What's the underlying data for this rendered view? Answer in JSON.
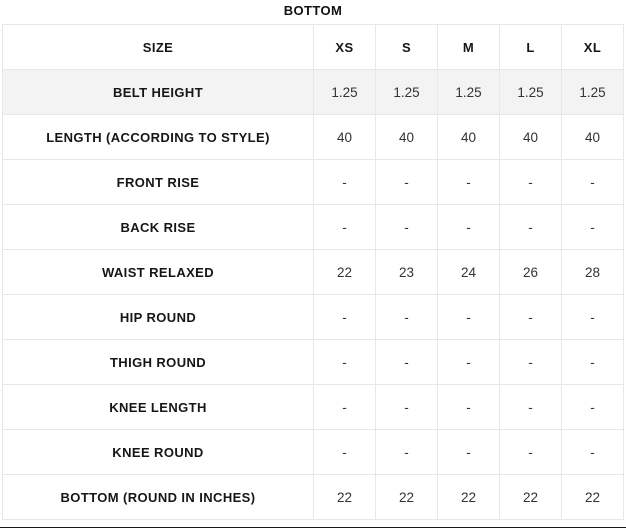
{
  "title": "BOTTOM",
  "table": {
    "header": {
      "label": "SIZE",
      "sizes": [
        "XS",
        "S",
        "M",
        "L",
        "XL"
      ]
    },
    "rows": [
      {
        "label": "BELT HEIGHT",
        "values": [
          "1.25",
          "1.25",
          "1.25",
          "1.25",
          "1.25"
        ],
        "shaded_label": true,
        "highlight": true
      },
      {
        "label": "LENGTH (ACCORDING TO STYLE)",
        "values": [
          "40",
          "40",
          "40",
          "40",
          "40"
        ],
        "shaded_label": false,
        "highlight": false
      },
      {
        "label": "FRONT RISE",
        "values": [
          "-",
          "-",
          "-",
          "-",
          "-"
        ],
        "shaded_label": true,
        "highlight": false
      },
      {
        "label": "BACK RISE",
        "values": [
          "-",
          "-",
          "-",
          "-",
          "-"
        ],
        "shaded_label": true,
        "highlight": false
      },
      {
        "label": "WAIST RELAXED",
        "values": [
          "22",
          "23",
          "24",
          "26",
          "28"
        ],
        "shaded_label": true,
        "highlight": false
      },
      {
        "label": "HIP ROUND",
        "values": [
          "-",
          "-",
          "-",
          "-",
          "-"
        ],
        "shaded_label": false,
        "highlight": false
      },
      {
        "label": "THIGH ROUND",
        "values": [
          "-",
          "-",
          "-",
          "-",
          "-"
        ],
        "shaded_label": true,
        "highlight": false
      },
      {
        "label": "KNEE LENGTH",
        "values": [
          "-",
          "-",
          "-",
          "-",
          "-"
        ],
        "shaded_label": true,
        "highlight": false
      },
      {
        "label": "KNEE ROUND",
        "values": [
          "-",
          "-",
          "-",
          "-",
          "-"
        ],
        "shaded_label": true,
        "highlight": false
      },
      {
        "label": "BOTTOM (ROUND IN INCHES)",
        "values": [
          "22",
          "22",
          "22",
          "22",
          "22"
        ],
        "shaded_label": true,
        "highlight": false
      }
    ]
  },
  "colors": {
    "shaded_row_bg": "#f5f5f5",
    "highlight_row_bg": "#f3f3f3",
    "cell_border": "#e7e7e7",
    "label_text": "#161616",
    "value_text": "#333333",
    "bottom_bar": "#191919"
  }
}
